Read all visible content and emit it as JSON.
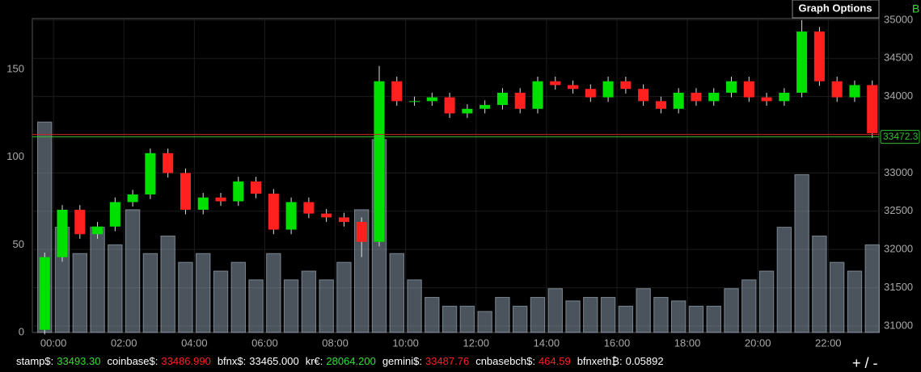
{
  "chart_data": {
    "type": "candlestick",
    "button": "Graph Options",
    "corner_label": "B",
    "zoom": "+ / -",
    "x": [
      -0.5,
      0,
      0.5,
      1,
      1.5,
      2,
      2.5,
      3,
      3.5,
      4,
      4.5,
      5,
      5.5,
      6,
      6.5,
      7,
      7.5,
      8,
      8.5,
      9,
      9.5,
      10,
      10.5,
      11,
      11.5,
      12,
      12.5,
      13,
      13.5,
      14,
      14.5,
      15,
      15.5,
      16,
      16.5,
      17,
      17.5,
      18,
      18.5,
      19,
      19.5,
      20,
      20.5,
      21,
      21.5,
      22,
      22.5,
      23
    ],
    "open": [
      30950,
      31900,
      32520,
      32200,
      32300,
      32620,
      32720,
      33260,
      33000,
      32520,
      32680,
      32630,
      32890,
      32730,
      32260,
      32620,
      32470,
      32420,
      32360,
      32100,
      34200,
      33940,
      33940,
      33990,
      33780,
      33840,
      33890,
      34050,
      33840,
      34200,
      34150,
      34100,
      33990,
      34200,
      34100,
      33940,
      33840,
      34050,
      33940,
      34050,
      34200,
      33990,
      33940,
      34050,
      34850,
      34200,
      33990,
      34150
    ],
    "high": [
      31960,
      32580,
      32580,
      32360,
      32680,
      32780,
      33320,
      33320,
      33060,
      32740,
      32740,
      32950,
      32950,
      32790,
      32680,
      32680,
      32530,
      32480,
      32420,
      34400,
      34260,
      34000,
      34050,
      34050,
      33900,
      33950,
      34110,
      34110,
      34260,
      34260,
      34210,
      34160,
      34260,
      34260,
      34160,
      34000,
      34110,
      34110,
      34110,
      34260,
      34260,
      34050,
      34110,
      35000,
      34910,
      34260,
      34210,
      34210
    ],
    "low": [
      30890,
      31840,
      32140,
      32140,
      32240,
      32560,
      32660,
      32940,
      32460,
      32460,
      32570,
      32570,
      32670,
      32200,
      32200,
      32410,
      32360,
      32300,
      31900,
      32040,
      33880,
      33880,
      33880,
      33720,
      33720,
      33780,
      33830,
      33780,
      33780,
      34090,
      34040,
      33930,
      33930,
      34040,
      33880,
      33780,
      33780,
      33880,
      33880,
      33990,
      33930,
      33880,
      33880,
      33990,
      34140,
      33930,
      33930,
      33460
    ],
    "close": [
      31900,
      32520,
      32200,
      32300,
      32620,
      32720,
      33260,
      33000,
      32520,
      32680,
      32630,
      32890,
      32730,
      32260,
      32620,
      32470,
      32420,
      32360,
      32100,
      34200,
      33940,
      33940,
      33990,
      33780,
      33840,
      33890,
      34050,
      33840,
      34200,
      34150,
      34100,
      33990,
      34200,
      34100,
      33940,
      33840,
      34050,
      33940,
      34050,
      34200,
      33990,
      33940,
      34050,
      34850,
      34200,
      33990,
      34150,
      33520
    ],
    "volume": [
      120,
      60,
      45,
      60,
      50,
      70,
      45,
      55,
      40,
      45,
      35,
      40,
      30,
      45,
      30,
      35,
      30,
      40,
      70,
      110,
      45,
      30,
      20,
      15,
      15,
      12,
      20,
      15,
      20,
      25,
      18,
      20,
      20,
      15,
      25,
      20,
      18,
      15,
      15,
      25,
      30,
      35,
      60,
      90,
      55,
      40,
      35,
      50
    ],
    "up_color": "#00e000",
    "down_color": "#ff2020",
    "volume_color": "#8899aa",
    "last_price": 33472.3,
    "last_price_label": "33472.3",
    "xlim": [
      -0.6,
      23.44
    ],
    "xticks": [
      {
        "value": 0,
        "label": "00:00"
      },
      {
        "value": 2,
        "label": "02:00"
      },
      {
        "value": 4,
        "label": "04:00"
      },
      {
        "value": 6,
        "label": "06:00"
      },
      {
        "value": 8,
        "label": "08:00"
      },
      {
        "value": 10,
        "label": "10:00"
      },
      {
        "value": 12,
        "label": "12:00"
      },
      {
        "value": 14,
        "label": "14:00"
      },
      {
        "value": 16,
        "label": "16:00"
      },
      {
        "value": 18,
        "label": "18:00"
      },
      {
        "value": 20,
        "label": "20:00"
      },
      {
        "value": 22,
        "label": "22:00"
      }
    ],
    "ylim": [
      0,
      179
    ],
    "yticks": [
      0,
      50,
      100,
      150
    ],
    "y2lim": [
      30915,
      35020
    ],
    "y2ticks": [
      31000,
      31500,
      32000,
      32500,
      33000,
      33500,
      34000,
      34500,
      35000
    ],
    "grid": true,
    "ticker": [
      {
        "label": "stamp$:",
        "value": "33493.30",
        "color": "#33dd33"
      },
      {
        "label": "coinbase$:",
        "value": "33486.990",
        "color": "#ff2020"
      },
      {
        "label": "bfnx$:",
        "value": "33465.000",
        "color": "#ffffff"
      },
      {
        "label": "kr€:",
        "value": "28064.200",
        "color": "#33dd33"
      },
      {
        "label": "gemini$:",
        "value": "33487.76",
        "color": "#ff2020"
      },
      {
        "label": "cnbasebch$:",
        "value": "464.59",
        "color": "#ff2020"
      },
      {
        "label": "bfnxeth₿:",
        "value": "0.05892",
        "color": "#ffffff"
      }
    ]
  }
}
